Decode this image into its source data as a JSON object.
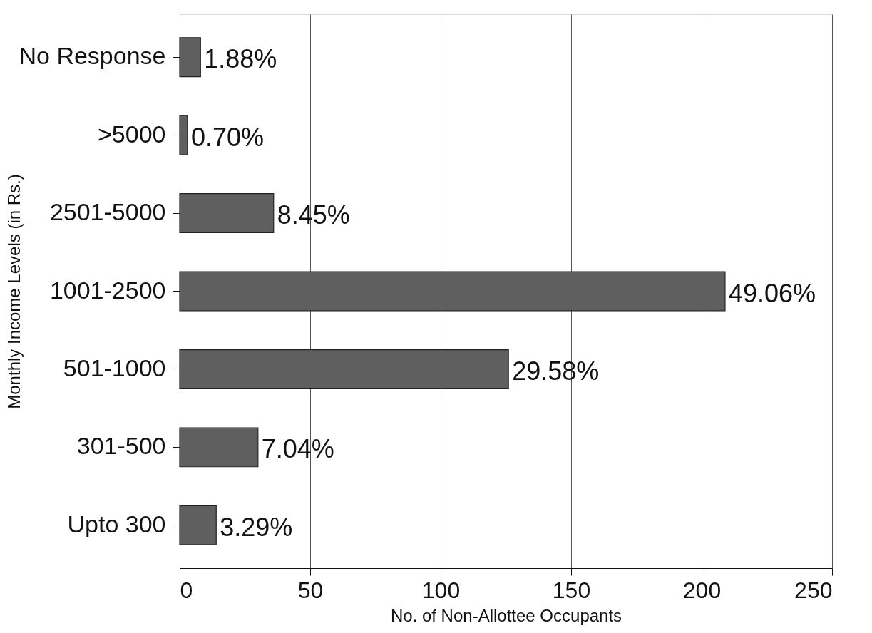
{
  "chart_data": {
    "type": "bar",
    "orientation": "horizontal",
    "xlabel": "No. of Non-Allottee Occupants",
    "ylabel": "Monthly Income Levels (in Rs.)",
    "categories": [
      "No Response",
      ">5000",
      "2501-5000",
      "1001-2500",
      "501-1000",
      "301-500",
      "Upto 300"
    ],
    "series": [
      {
        "color": "#5f5f5f",
        "values": [
          8,
          3,
          36,
          209,
          126,
          30,
          14
        ]
      }
    ],
    "annotations": [
      {
        "text": "1.88%",
        "x": 8,
        "y": "No Response"
      },
      {
        "text": "0.70%",
        "x": 3,
        "y": ">5000"
      },
      {
        "text": "8.45%",
        "x": 36,
        "y": "2501-5000"
      },
      {
        "text": "49.06%",
        "x": 209,
        "y": "1001-2500"
      },
      {
        "text": "29.58%",
        "x": 126,
        "y": "501-1000"
      },
      {
        "text": "7.04%",
        "x": 30,
        "y": "301-500"
      },
      {
        "text": "3.29%",
        "x": 14,
        "y": "Upto 300"
      }
    ],
    "xlim": [
      0,
      250
    ],
    "xticks": [
      0,
      50,
      100,
      150,
      200,
      250
    ],
    "grid": "x"
  }
}
